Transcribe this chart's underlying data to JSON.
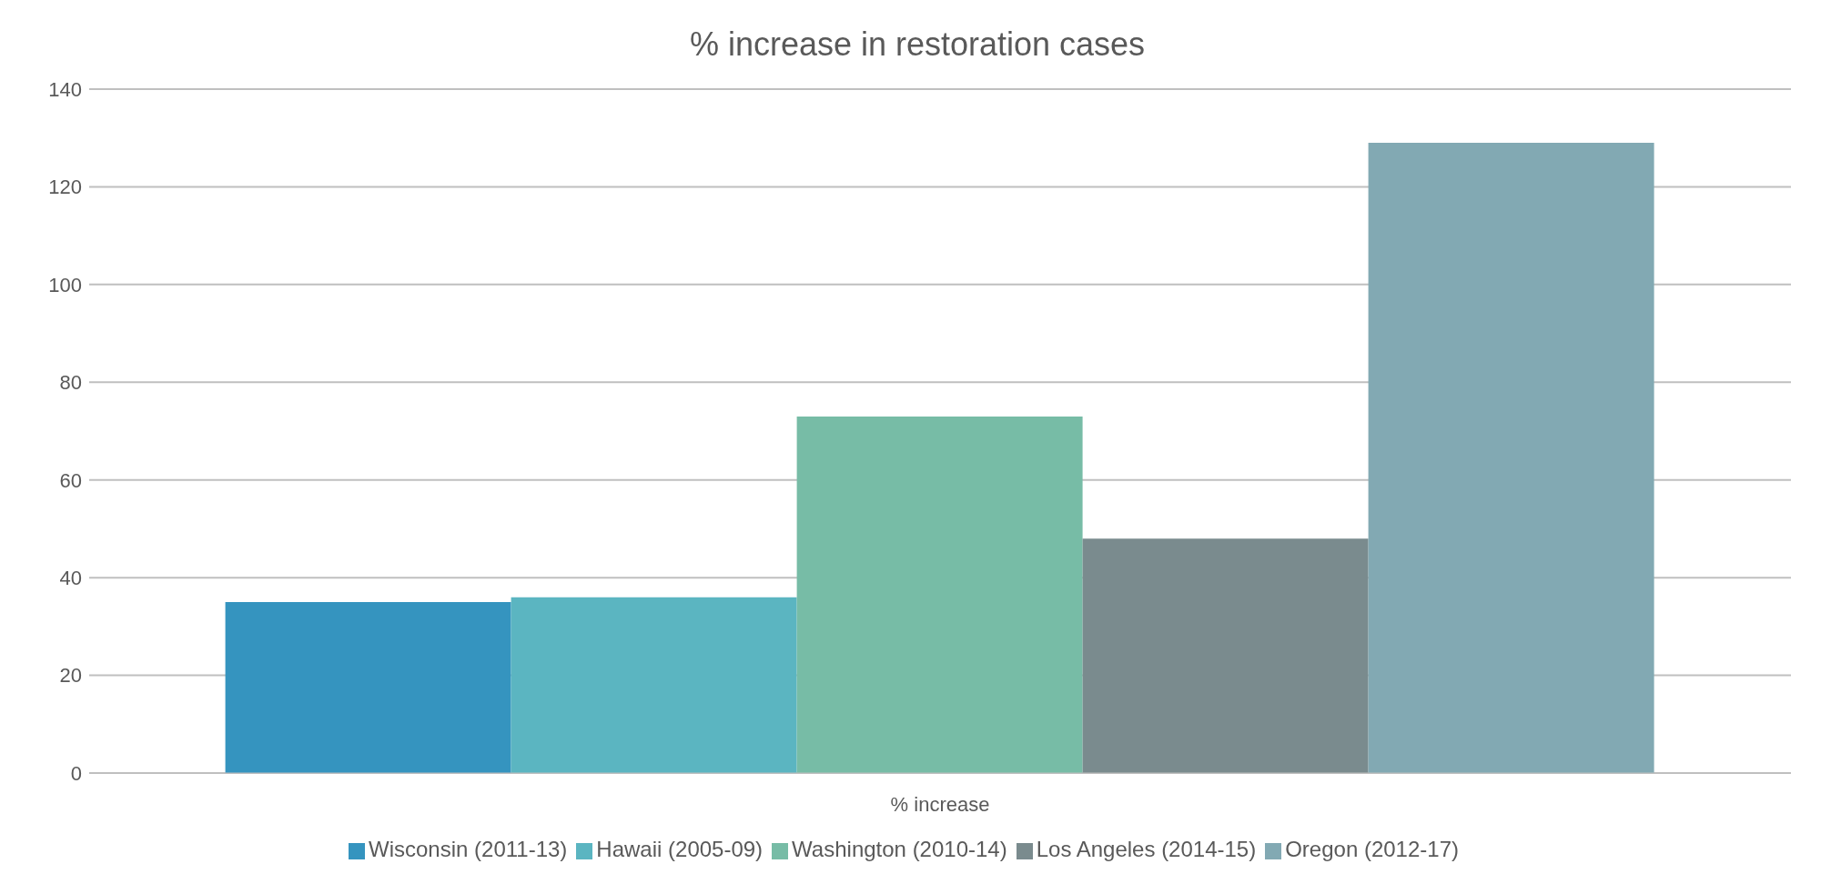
{
  "chart_data": {
    "type": "bar",
    "title": "% increase in restoration cases",
    "categories": [
      "% increase"
    ],
    "series": [
      {
        "name": "Wisconsin (2011-13)",
        "color": "#3594bf",
        "values": [
          35
        ]
      },
      {
        "name": "Hawaii (2005-09)",
        "color": "#5bb5c1",
        "values": [
          36
        ]
      },
      {
        "name": "Washington (2010-14)",
        "color": "#77bca6",
        "values": [
          73
        ]
      },
      {
        "name": "Los Angeles (2014-15)",
        "color": "#7a8b8e",
        "values": [
          48
        ]
      },
      {
        "name": "Oregon (2012-17)",
        "color": "#82a9b3",
        "values": [
          129
        ]
      }
    ],
    "ylim": [
      0,
      140
    ],
    "yticks": [
      0,
      20,
      40,
      60,
      80,
      100,
      120,
      140
    ],
    "grid": "y",
    "legend": "bottom"
  }
}
